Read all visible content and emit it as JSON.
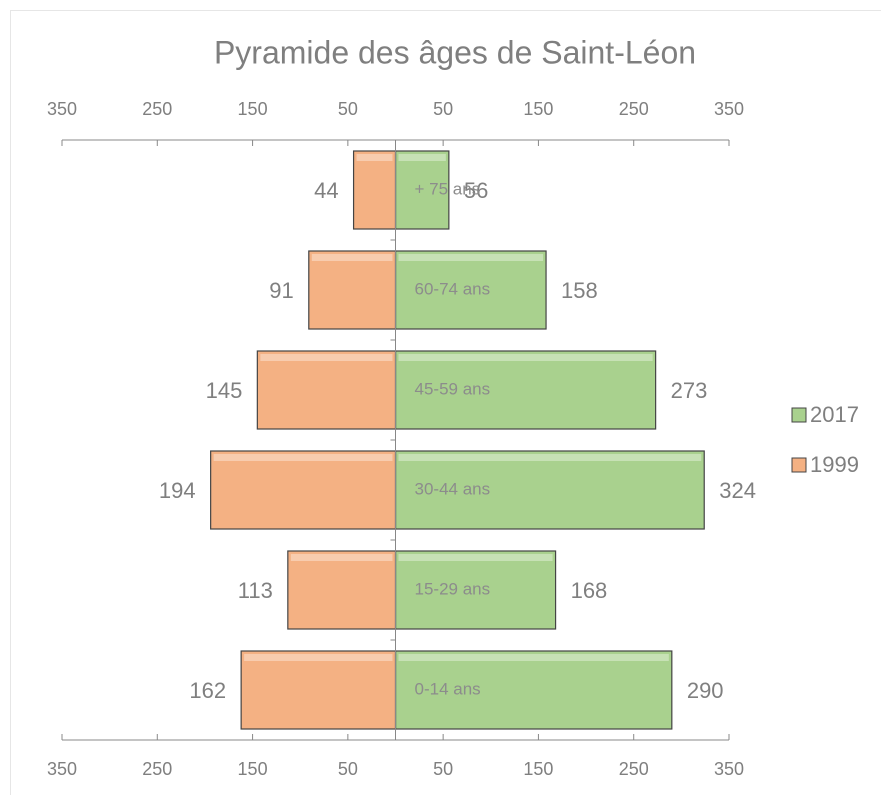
{
  "chart_data": {
    "type": "bar",
    "orientation": "horizontal",
    "title": "Pyramide des âges de Saint-Léon",
    "categories": [
      "0-14 ans",
      "15-29 ans",
      "30-44 ans",
      "45-59 ans",
      "60-74 ans",
      "+ 75 ans"
    ],
    "series": [
      {
        "name": "2017",
        "color": "#a9d18e",
        "values": [
          290,
          168,
          324,
          273,
          158,
          56
        ]
      },
      {
        "name": "1999",
        "color": "#f4b183",
        "values": [
          -162,
          -113,
          -194,
          -145,
          -91,
          -44
        ],
        "value_labels": [
          "162",
          "113",
          "194",
          "145",
          "91",
          "44"
        ]
      }
    ],
    "xlim": [
      -350,
      350
    ],
    "xticks": [
      {
        "value": -350,
        "label": "350"
      },
      {
        "value": -250,
        "label": "250"
      },
      {
        "value": -150,
        "label": "150"
      },
      {
        "value": -50,
        "label": "50"
      },
      50,
      150,
      250,
      350
    ],
    "legend": "right"
  }
}
